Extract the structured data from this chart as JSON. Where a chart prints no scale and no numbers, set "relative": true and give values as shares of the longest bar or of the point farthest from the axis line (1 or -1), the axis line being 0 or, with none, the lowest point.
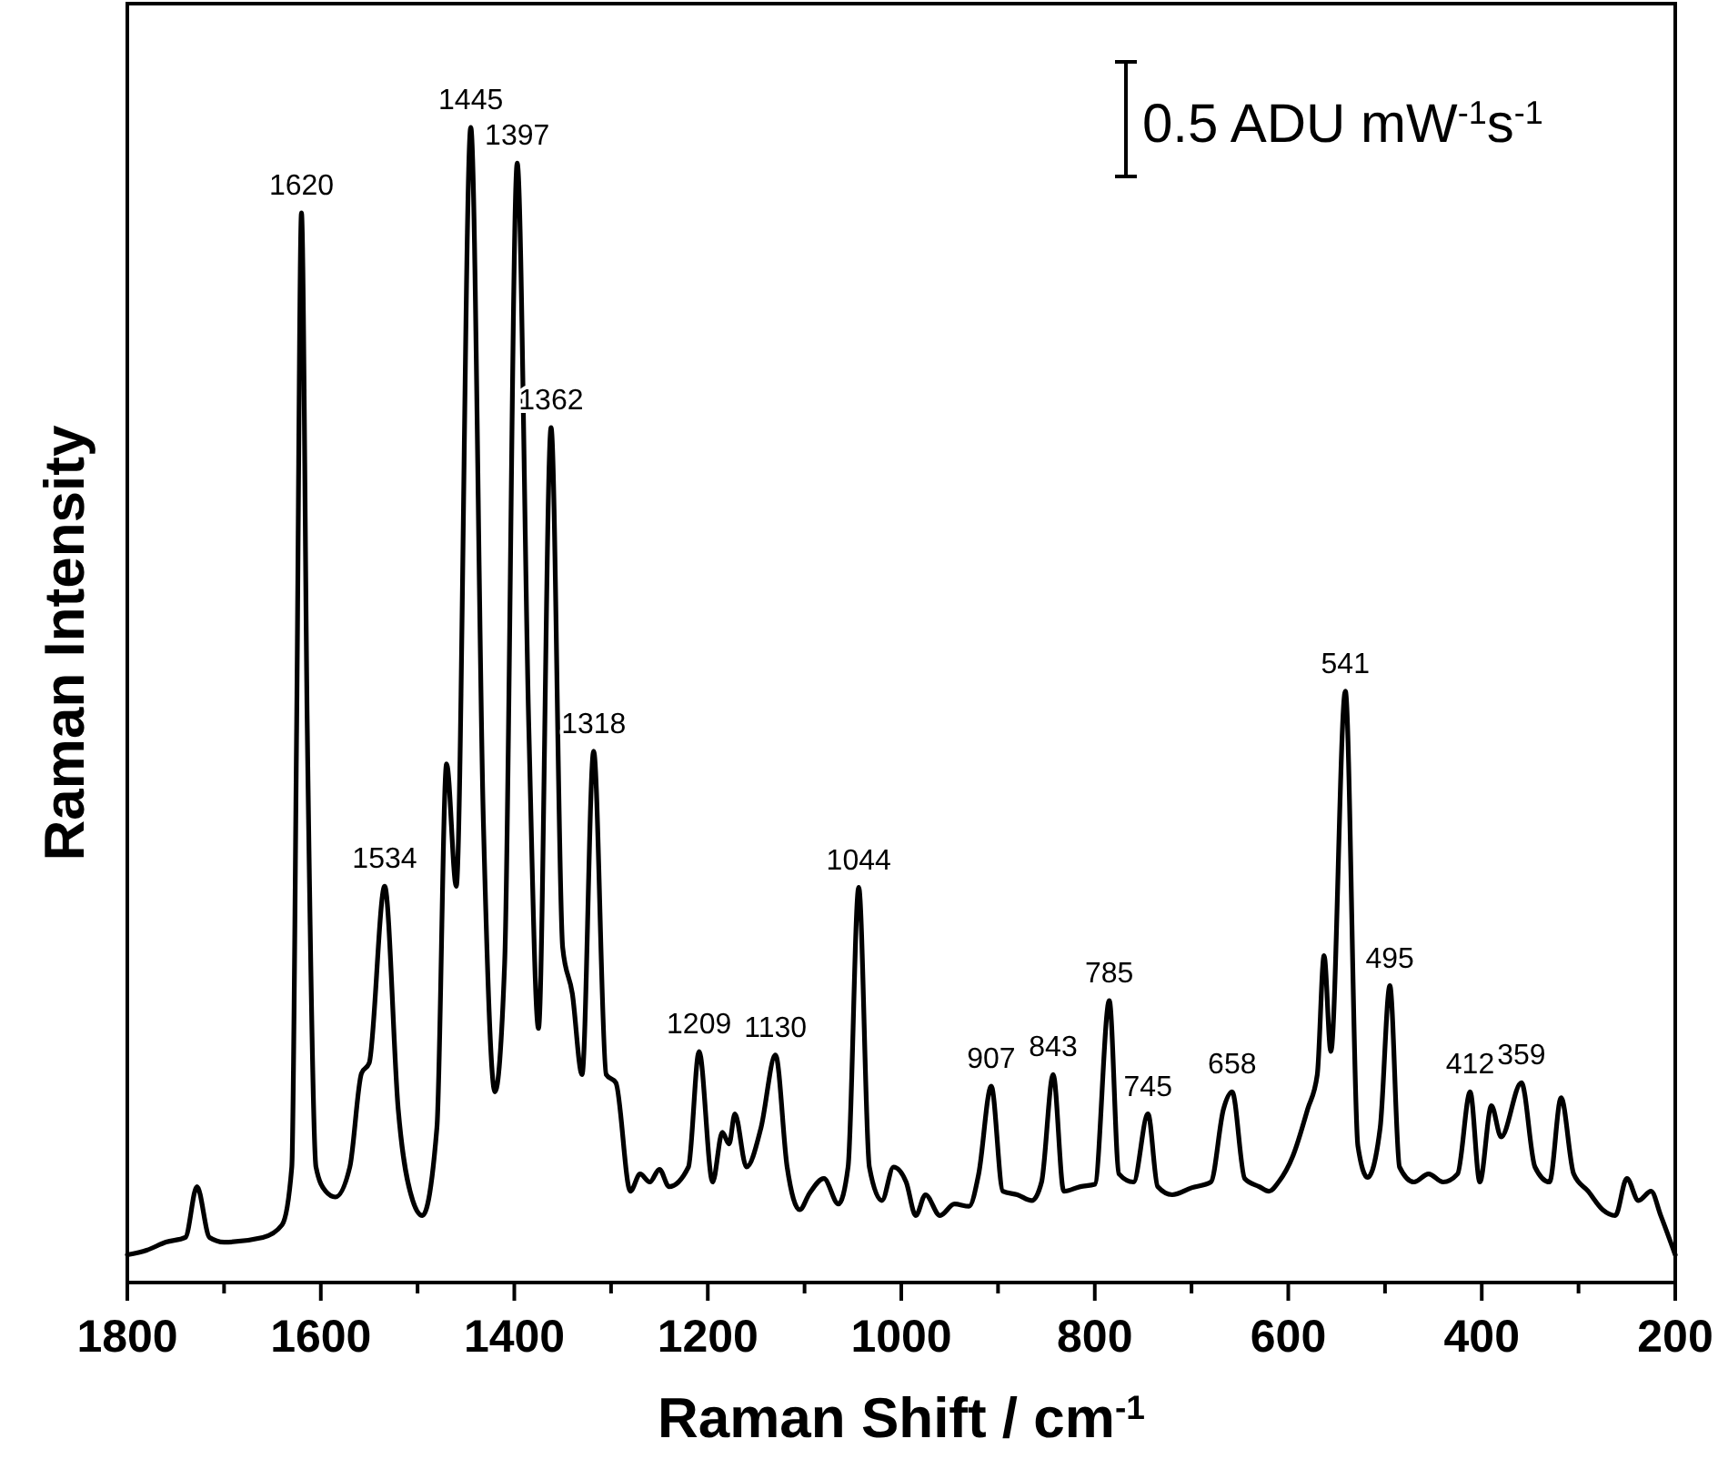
{
  "chart_data": {
    "type": "line",
    "relative": true,
    "xlabel": "Raman Shift / cm$^{-1}$",
    "ylabel": "Raman Intensity",
    "xlim": [
      1800,
      200
    ],
    "xticks": [
      1800,
      {
        "value": 1700,
        "label": null
      },
      1600,
      {
        "value": 1500,
        "label": null
      },
      1400,
      {
        "value": 1300,
        "label": null
      },
      1200,
      {
        "value": 1100,
        "label": null
      },
      1000,
      {
        "value": 900,
        "label": null
      },
      800,
      {
        "value": 700,
        "label": null
      },
      600,
      {
        "value": 500,
        "label": null
      },
      400,
      {
        "value": 300,
        "label": null
      },
      200
    ],
    "grid": false,
    "marker": "none",
    "line_style": "solid",
    "series": [
      {
        "color": "#000000",
        "x": [
          1800,
          1780,
          1760,
          1740,
          1728,
          1715,
          1700,
          1660,
          1640,
          1630,
          1625,
          1620,
          1614,
          1605,
          1595,
          1585,
          1570,
          1558,
          1550,
          1534,
          1520,
          1505,
          1495,
          1480,
          1470,
          1460,
          1445,
          1432,
          1420,
          1410,
          1397,
          1385,
          1375,
          1362,
          1350,
          1340,
          1330,
          1318,
          1305,
          1295,
          1280,
          1270,
          1260,
          1250,
          1240,
          1220,
          1209,
          1195,
          1185,
          1178,
          1172,
          1160,
          1145,
          1130,
          1118,
          1105,
          1095,
          1080,
          1065,
          1055,
          1044,
          1033,
          1020,
          1008,
          995,
          985,
          975,
          960,
          945,
          930,
          920,
          907,
          895,
          880,
          865,
          855,
          843,
          832,
          815,
          800,
          785,
          775,
          760,
          745,
          735,
          720,
          700,
          680,
          667,
          658,
          645,
          630,
          620,
          610,
          595,
          580,
          570,
          563,
          556,
          541,
          528,
          518,
          505,
          495,
          485,
          470,
          455,
          440,
          425,
          412,
          402,
          390,
          380,
          359,
          345,
          330,
          318,
          305,
          290,
          275,
          262,
          250,
          238,
          225,
          215,
          200
        ],
        "values": [
          0.024,
          0.028,
          0.035,
          0.039,
          0.083,
          0.039,
          0.035,
          0.039,
          0.05,
          0.1,
          0.48,
          0.926,
          0.48,
          0.1,
          0.079,
          0.074,
          0.1,
          0.181,
          0.19,
          0.343,
          0.15,
          0.071,
          0.058,
          0.134,
          0.449,
          0.343,
          1.0,
          0.4,
          0.165,
          0.276,
          0.969,
          0.48,
          0.22,
          0.74,
          0.29,
          0.25,
          0.18,
          0.46,
          0.18,
          0.173,
          0.079,
          0.094,
          0.087,
          0.098,
          0.083,
          0.1,
          0.2,
          0.087,
          0.13,
          0.12,
          0.146,
          0.1,
          0.134,
          0.197,
          0.1,
          0.063,
          0.077,
          0.09,
          0.068,
          0.1,
          0.342,
          0.1,
          0.071,
          0.1,
          0.087,
          0.058,
          0.076,
          0.058,
          0.068,
          0.066,
          0.094,
          0.17,
          0.079,
          0.076,
          0.071,
          0.087,
          0.18,
          0.079,
          0.083,
          0.085,
          0.244,
          0.094,
          0.087,
          0.146,
          0.083,
          0.076,
          0.082,
          0.087,
          0.15,
          0.165,
          0.09,
          0.083,
          0.079,
          0.087,
          0.11,
          0.15,
          0.18,
          0.283,
          0.2,
          0.512,
          0.118,
          0.091,
          0.134,
          0.257,
          0.1,
          0.087,
          0.094,
          0.087,
          0.094,
          0.165,
          0.087,
          0.153,
          0.126,
          0.173,
          0.1,
          0.087,
          0.16,
          0.094,
          0.079,
          0.063,
          0.058,
          0.09,
          0.071,
          0.079,
          0.058,
          0.024
        ]
      }
    ],
    "annotations": [
      {
        "text": "1620",
        "x": 1620,
        "y": 0.926
      },
      {
        "text": "1534",
        "x": 1534,
        "y": 0.343
      },
      {
        "text": "1445",
        "x": 1445,
        "y": 1.0
      },
      {
        "text": "1397",
        "x": 1397,
        "y": 0.969
      },
      {
        "text": "1362",
        "x": 1362,
        "y": 0.74
      },
      {
        "text": "1318",
        "x": 1318,
        "y": 0.46
      },
      {
        "text": "1209",
        "x": 1209,
        "y": 0.2
      },
      {
        "text": "1130",
        "x": 1130,
        "y": 0.197
      },
      {
        "text": "1044",
        "x": 1044,
        "y": 0.342
      },
      {
        "text": "907",
        "x": 907,
        "y": 0.17
      },
      {
        "text": "843",
        "x": 843,
        "y": 0.18
      },
      {
        "text": "785",
        "x": 785,
        "y": 0.244
      },
      {
        "text": "745",
        "x": 745,
        "y": 0.146
      },
      {
        "text": "658",
        "x": 658,
        "y": 0.165
      },
      {
        "text": "541",
        "x": 541,
        "y": 0.512
      },
      {
        "text": "495",
        "x": 495,
        "y": 0.257
      },
      {
        "text": "412",
        "x": 412,
        "y": 0.165
      },
      {
        "text": "359",
        "x": 359,
        "y": 0.173
      },
      "0.5 ADU mW$^{-1}$s$^{-1}$"
    ]
  }
}
